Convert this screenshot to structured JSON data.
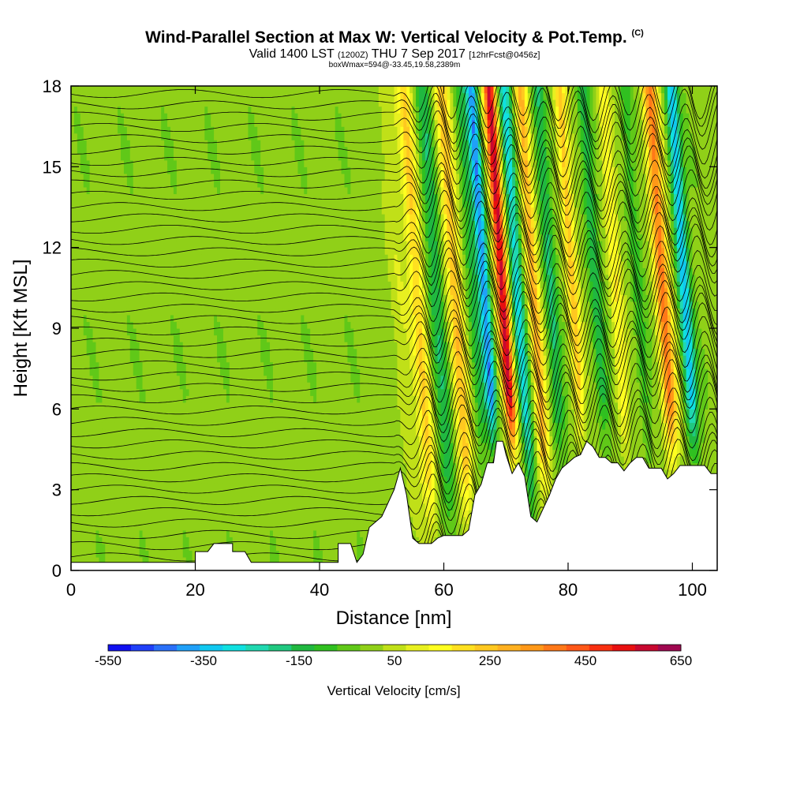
{
  "header": {
    "title": "Wind-Parallel Section at Max W: Vertical Velocity & Pot.Temp.",
    "copyright": "(C)",
    "valid_prefix": "Valid 1400 LST",
    "valid_utc": "(1200Z)",
    "valid_date": "THU 7 Sep 2017",
    "forecast": "[12hrFcst@0456z]",
    "box_info": "boxWmax=594@-33.45,19.58,2389m"
  },
  "chart_data": {
    "type": "heatmap",
    "xlabel": "Distance [nm]",
    "ylabel": "Height [Kft MSL]",
    "xlim": [
      0,
      104
    ],
    "ylim": [
      0,
      18
    ],
    "x_ticks": [
      0,
      20,
      40,
      60,
      80,
      100
    ],
    "y_ticks": [
      0,
      3,
      6,
      9,
      12,
      15,
      18
    ],
    "colorbar": {
      "label": "Vertical Velocity [cm/s]",
      "tick_labels": [
        -550,
        -350,
        -150,
        50,
        250,
        450,
        650
      ],
      "min": -550,
      "max": 650,
      "step": 50,
      "colors": [
        "#1010f0",
        "#2040f8",
        "#2a70f8",
        "#20a0f8",
        "#10c8f0",
        "#10e0e0",
        "#20d8b0",
        "#20c880",
        "#20b840",
        "#30c020",
        "#60c818",
        "#90d018",
        "#c0e018",
        "#e8f020",
        "#ffff20",
        "#ffe020",
        "#ffc820",
        "#ffb020",
        "#ff9818",
        "#ff7818",
        "#ff5818",
        "#f83010",
        "#e81010",
        "#c80830",
        "#a00850"
      ]
    },
    "terrain_profile": [
      [
        0,
        0.3
      ],
      [
        20,
        0.3
      ],
      [
        20,
        0.7
      ],
      [
        22,
        0.7
      ],
      [
        23,
        1.0
      ],
      [
        26,
        1.0
      ],
      [
        26,
        0.7
      ],
      [
        28,
        0.7
      ],
      [
        29,
        0.3
      ],
      [
        43,
        0.3
      ],
      [
        43,
        1.0
      ],
      [
        45,
        1.0
      ],
      [
        46,
        0.3
      ],
      [
        47,
        0.6
      ],
      [
        48,
        1.6
      ],
      [
        50,
        2.0
      ],
      [
        52,
        3.0
      ],
      [
        53,
        3.8
      ],
      [
        54,
        2.8
      ],
      [
        55,
        1.2
      ],
      [
        56,
        1.0
      ],
      [
        58,
        1.0
      ],
      [
        59,
        1.2
      ],
      [
        60,
        1.3
      ],
      [
        63,
        1.3
      ],
      [
        64,
        1.5
      ],
      [
        65,
        2.8
      ],
      [
        66,
        3.2
      ],
      [
        67,
        4.0
      ],
      [
        68,
        4.0
      ],
      [
        68.5,
        4.8
      ],
      [
        69.5,
        4.8
      ],
      [
        70,
        4.3
      ],
      [
        71,
        3.6
      ],
      [
        72,
        4.0
      ],
      [
        73,
        3.5
      ],
      [
        74,
        2.0
      ],
      [
        75,
        1.8
      ],
      [
        77,
        2.8
      ],
      [
        78,
        3.4
      ],
      [
        79,
        3.8
      ],
      [
        80,
        4.0
      ],
      [
        81,
        4.2
      ],
      [
        82,
        4.3
      ],
      [
        83,
        4.8
      ],
      [
        84,
        4.6
      ],
      [
        85,
        4.2
      ],
      [
        86,
        4.2
      ],
      [
        87,
        4.0
      ],
      [
        88,
        4.0
      ],
      [
        89,
        3.7
      ],
      [
        90,
        4.0
      ],
      [
        91,
        4.2
      ],
      [
        92,
        4.2
      ],
      [
        93,
        3.8
      ],
      [
        95,
        3.8
      ],
      [
        96,
        3.4
      ],
      [
        97,
        3.6
      ],
      [
        98,
        3.9
      ],
      [
        102,
        3.9
      ],
      [
        103,
        3.6
      ],
      [
        104,
        3.6
      ]
    ],
    "w_bands": [
      {
        "x": 54.5,
        "w": 80,
        "width": 1.6
      },
      {
        "x": 57.5,
        "w": 220,
        "width": 1.2
      },
      {
        "x": 60.5,
        "w": -150,
        "width": 1.2
      },
      {
        "x": 63.5,
        "w": 260,
        "width": 1.2
      },
      {
        "x": 66.5,
        "w": -120,
        "width": 1.0
      },
      {
        "x": 68.3,
        "w": -400,
        "width": 0.9
      },
      {
        "x": 71.2,
        "w": 594,
        "width": 1.0
      },
      {
        "x": 73.6,
        "w": -280,
        "width": 1.0
      },
      {
        "x": 76.2,
        "w": 300,
        "width": 1.0
      },
      {
        "x": 79.0,
        "w": -180,
        "width": 1.0
      },
      {
        "x": 82.5,
        "w": 260,
        "width": 1.0
      },
      {
        "x": 86.2,
        "w": -160,
        "width": 1.0
      },
      {
        "x": 89.5,
        "w": 180,
        "width": 1.0
      },
      {
        "x": 93.0,
        "w": -100,
        "width": 1.0
      },
      {
        "x": 97.0,
        "w": 400,
        "width": 1.2
      },
      {
        "x": 100.5,
        "w": -350,
        "width": 1.0
      }
    ]
  }
}
